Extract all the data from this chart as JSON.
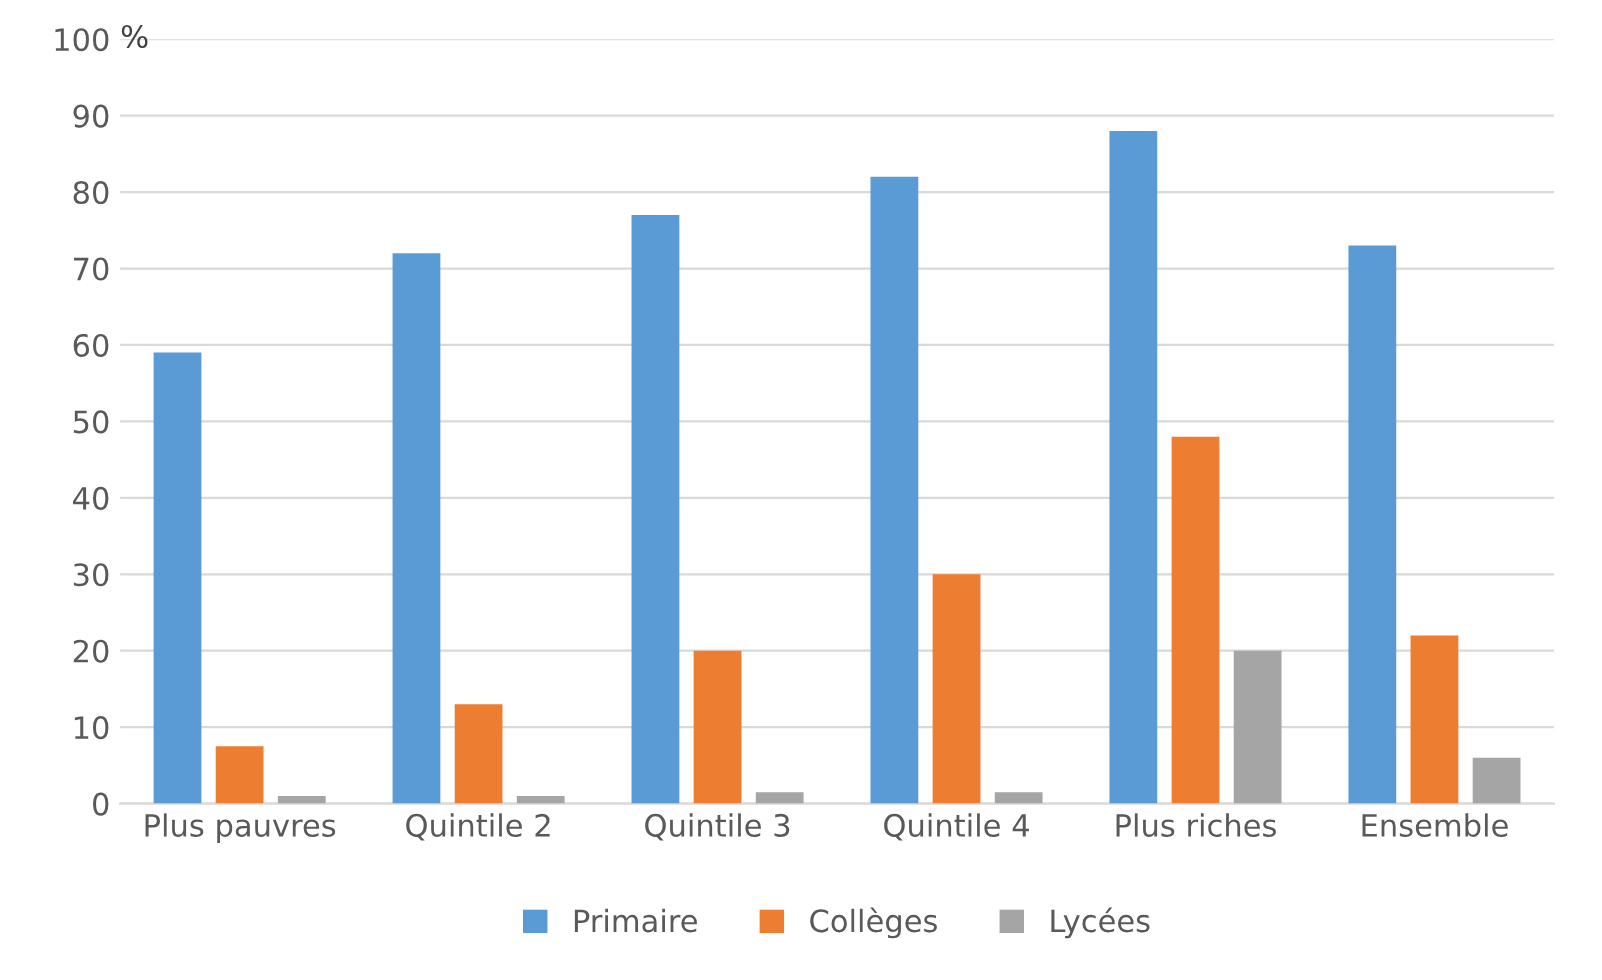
{
  "chart_data": {
    "type": "bar",
    "ylabel": "%",
    "categories": [
      "Plus pauvres",
      "Quintile 2",
      "Quintile 3",
      "Quintile 4",
      "Plus riches",
      "Ensemble"
    ],
    "series": [
      {
        "name": "Primaire",
        "color": "#5b9bd5",
        "values": [
          59,
          72,
          77,
          82,
          88,
          73
        ]
      },
      {
        "name": "Collèges",
        "color": "#ed7d31",
        "values": [
          7.5,
          13,
          20,
          30,
          48,
          22
        ]
      },
      {
        "name": "Lycées",
        "color": "#a5a5a5",
        "values": [
          1,
          1,
          1.5,
          1.5,
          20,
          6
        ]
      }
    ],
    "ylim": [
      0,
      100
    ],
    "yticks": [
      0,
      10,
      20,
      30,
      40,
      50,
      60,
      70,
      80,
      90,
      100
    ],
    "grid": "y",
    "legend": "bottom"
  }
}
